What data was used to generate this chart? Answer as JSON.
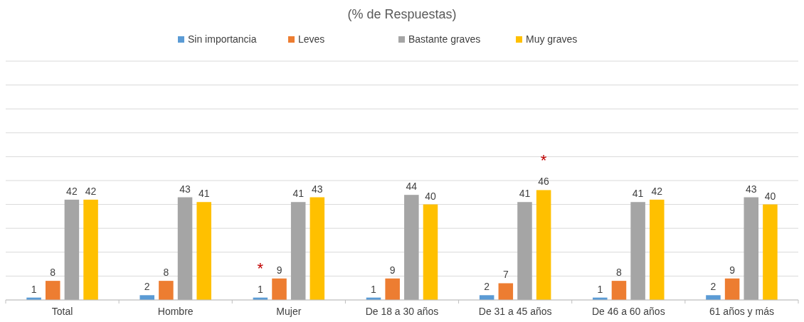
{
  "chart_data": {
    "type": "bar",
    "title": "(% de Respuestas)",
    "categories": [
      "Total",
      "Hombre",
      "Mujer",
      "De 18 a 30 años",
      "De 31 a 45 años",
      "De 46 a 60 años",
      "61 años y más"
    ],
    "series": [
      {
        "name": "Sin importancia",
        "color": "#5b9bd5",
        "values": [
          1,
          2,
          1,
          1,
          2,
          1,
          2
        ]
      },
      {
        "name": "Leves",
        "color": "#ed7d31",
        "values": [
          8,
          8,
          9,
          9,
          7,
          8,
          9
        ]
      },
      {
        "name": "Bastante graves",
        "color": "#a5a5a5",
        "values": [
          42,
          43,
          41,
          44,
          41,
          41,
          43
        ]
      },
      {
        "name": "Muy graves",
        "color": "#ffc000",
        "values": [
          42,
          41,
          43,
          40,
          46,
          42,
          40
        ]
      }
    ],
    "ylim": [
      0,
      100
    ],
    "yticks": [
      {
        "value": 0,
        "label": null
      },
      {
        "value": 10,
        "label": null
      },
      {
        "value": 20,
        "label": null
      },
      {
        "value": 30,
        "label": null
      },
      {
        "value": 40,
        "label": null
      },
      {
        "value": 50,
        "label": null
      },
      {
        "value": 60,
        "label": null
      },
      {
        "value": 70,
        "label": null
      },
      {
        "value": 80,
        "label": null
      },
      {
        "value": 90,
        "label": null
      },
      {
        "value": 100,
        "label": null
      }
    ],
    "tick_labels": "x",
    "grid": "y",
    "legend": "top",
    "data_labels": true,
    "annotations": [
      {
        "text": "*",
        "x": "Mujer",
        "y": 1
      },
      "*"
    ]
  }
}
